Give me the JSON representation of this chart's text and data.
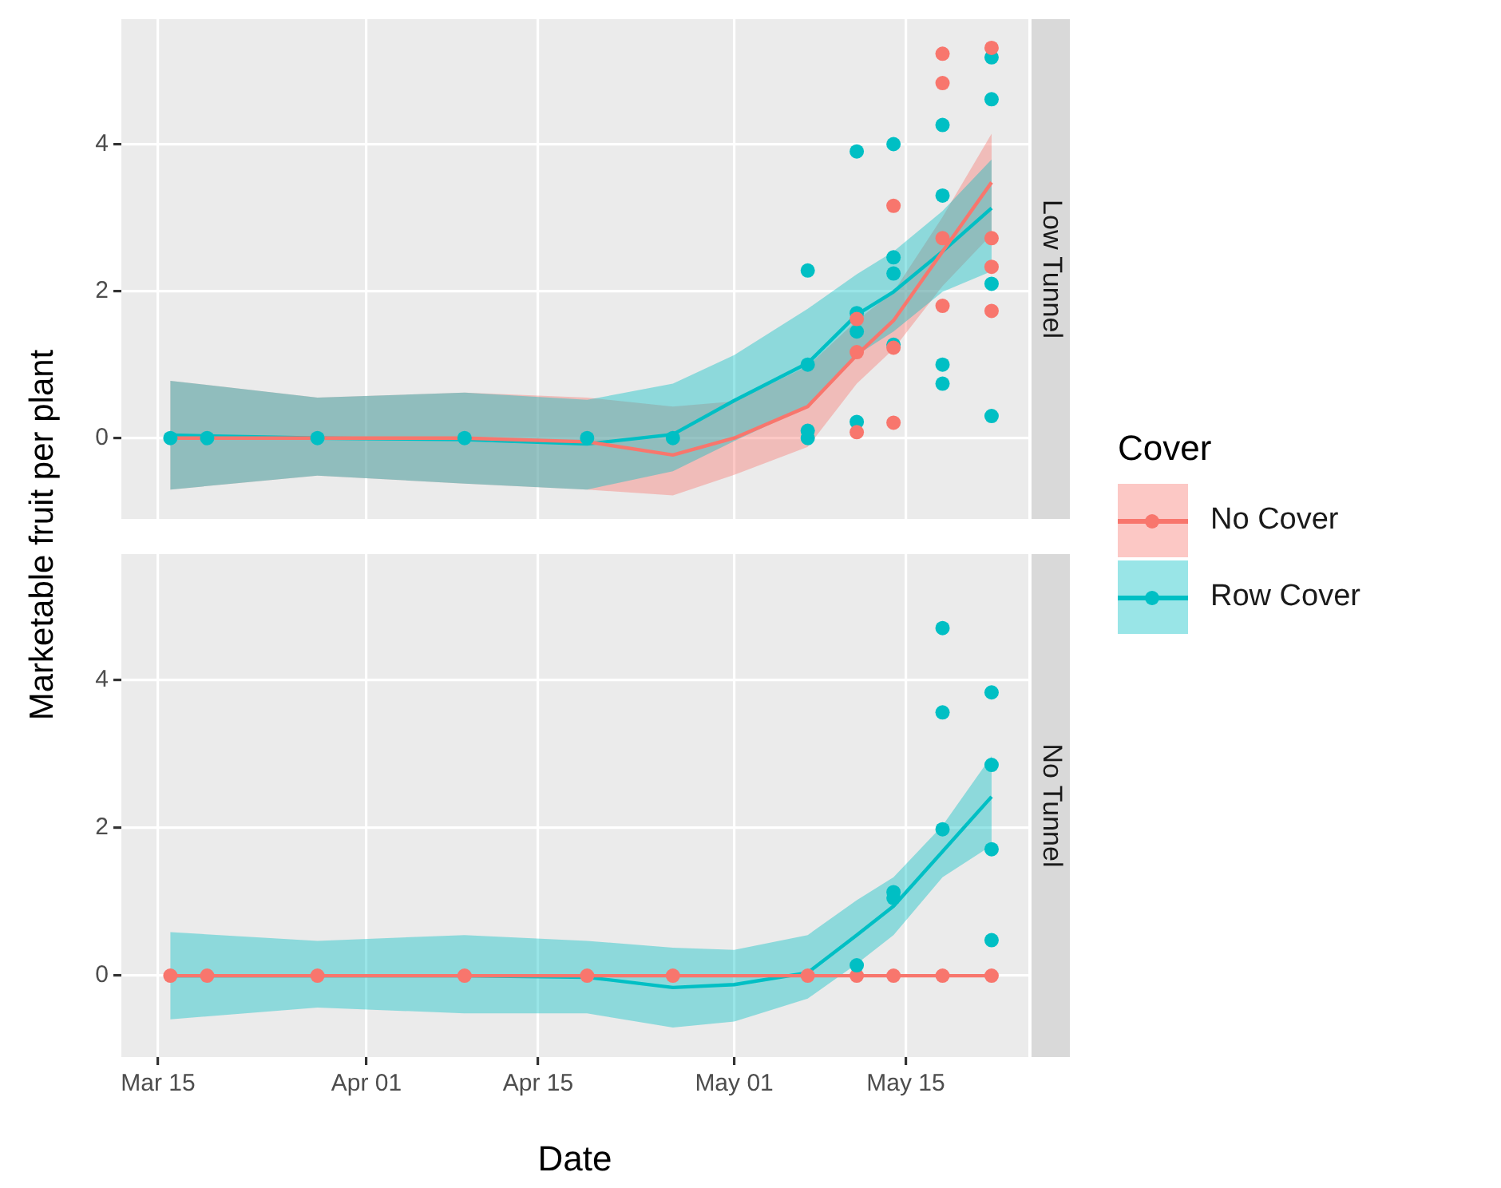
{
  "chart_data": [
    {
      "type": "scatter",
      "title": "Low Tunnel",
      "ylabel": "Marketable fruit per plant",
      "legend_title": "Cover",
      "legend": "right",
      "grid": true,
      "tick_labels": "y",
      "xlim": [
        "--03-12",
        "--05-25"
      ],
      "xticks": [
        "--03-15",
        "--04-01",
        "--04-15",
        "--05-01",
        "--05-15"
      ],
      "ylim": [
        -1.1,
        5.7
      ],
      "yticks": [
        0,
        2,
        4
      ],
      "series": [
        {
          "type": "line",
          "name": "No Cover",
          "color": "#f8766d",
          "marker": "none",
          "x": [
            "--03-16",
            "--03-28",
            "--04-09",
            "--04-19",
            "--04-26",
            "--05-01",
            "--05-07",
            "--05-11",
            "--05-14",
            "--05-18",
            "--05-22"
          ],
          "values": [
            0,
            0,
            0,
            -0.05,
            -0.23,
            0,
            0.43,
            1.13,
            1.6,
            2.54,
            3.48
          ],
          "lower": [
            -0.7,
            -0.51,
            -0.62,
            -0.7,
            -0.78,
            -0.5,
            -0.12,
            0.74,
            1.21,
            2.07,
            2.77
          ],
          "upper": [
            0.78,
            0.55,
            0.62,
            0.55,
            0.43,
            0.5,
            0.98,
            1.6,
            1.99,
            3.01,
            4.14
          ]
        },
        {
          "type": "line",
          "name": "Row Cover",
          "color": "#00bfc4",
          "marker": "none",
          "x": [
            "--03-16",
            "--03-28",
            "--04-09",
            "--04-19",
            "--04-26",
            "--05-01",
            "--05-07",
            "--05-11",
            "--05-14",
            "--05-18",
            "--05-22"
          ],
          "values": [
            0.04,
            0,
            -0.02,
            -0.08,
            0.05,
            0.51,
            1.02,
            1.68,
            1.99,
            2.54,
            3.13
          ],
          "lower": [
            -0.7,
            -0.51,
            -0.62,
            -0.7,
            -0.45,
            -0.04,
            0.43,
            1.13,
            1.45,
            1.99,
            2.27
          ],
          "upper": [
            0.78,
            0.55,
            0.62,
            0.52,
            0.74,
            1.13,
            1.76,
            2.23,
            2.54,
            3.09,
            3.79
          ]
        },
        {
          "color": "#f8766d",
          "marker": "circle",
          "x": [
            "--05-11",
            "--05-11",
            "--05-11",
            "--05-14",
            "--05-14",
            "--05-14",
            "--05-18",
            "--05-18",
            "--05-18",
            "--05-18",
            "--05-22",
            "--05-22",
            "--05-22",
            "--05-22"
          ],
          "values": [
            1.62,
            1.17,
            0.08,
            3.16,
            1.23,
            0.21,
            5.23,
            4.83,
            2.72,
            1.8,
            5.31,
            2.72,
            2.33,
            1.73
          ]
        },
        {
          "color": "#00bfc4",
          "marker": "circle",
          "x": [
            "--03-16",
            "--03-19",
            "--03-28",
            "--04-09",
            "--04-19",
            "--04-26",
            "--05-07",
            "--05-07",
            "--05-07",
            "--05-07",
            "--05-11",
            "--05-11",
            "--05-11",
            "--05-11",
            "--05-14",
            "--05-14",
            "--05-14",
            "--05-14",
            "--05-18",
            "--05-18",
            "--05-18",
            "--05-18",
            "--05-22",
            "--05-22",
            "--05-22",
            "--05-22"
          ],
          "values": [
            0,
            0,
            0,
            0,
            0,
            0,
            2.28,
            1.0,
            0.1,
            0,
            3.9,
            1.7,
            1.45,
            0.22,
            4.0,
            2.46,
            2.24,
            1.27,
            4.26,
            3.3,
            1.0,
            0.74,
            5.18,
            4.61,
            2.1,
            0.3
          ]
        }
      ]
    },
    {
      "type": "scatter",
      "title": "No Tunnel",
      "xlabel": "Date",
      "grid": true,
      "xlim": [
        "--03-12",
        "--05-25"
      ],
      "xticks": [
        {
          "value": "--03-15",
          "label": "Mar 15"
        },
        {
          "value": "--04-01",
          "label": "Apr 01"
        },
        {
          "value": "--04-15",
          "label": "Apr 15"
        },
        {
          "value": "--05-01",
          "label": "May 01"
        },
        {
          "value": "--05-15",
          "label": "May 15"
        }
      ],
      "ylim": [
        -1.1,
        5.7
      ],
      "yticks": [
        0,
        2,
        4
      ],
      "series": [
        {
          "type": "line",
          "color": "#f8766d",
          "marker": "none",
          "x": [
            "--03-16",
            "--05-22"
          ],
          "values": [
            0,
            0
          ]
        },
        {
          "type": "line",
          "color": "#00bfc4",
          "marker": "none",
          "x": [
            "--03-16",
            "--03-28",
            "--04-09",
            "--04-19",
            "--04-26",
            "--05-01",
            "--05-07",
            "--05-11",
            "--05-14",
            "--05-18",
            "--05-22"
          ],
          "values": [
            0,
            0,
            0,
            -0.02,
            -0.16,
            -0.12,
            0.04,
            0.55,
            0.94,
            1.68,
            2.42
          ],
          "lower": [
            -0.59,
            -0.43,
            -0.51,
            -0.51,
            -0.7,
            -0.62,
            -0.31,
            0.16,
            0.55,
            1.33,
            1.76
          ],
          "upper": [
            0.59,
            0.47,
            0.55,
            0.47,
            0.38,
            0.35,
            0.55,
            1.02,
            1.33,
            2.03,
            2.97
          ]
        },
        {
          "color": "#00bfc4",
          "marker": "circle",
          "x": [
            "--05-11",
            "--05-14",
            "--05-14",
            "--05-18",
            "--05-18",
            "--05-18",
            "--05-22",
            "--05-22",
            "--05-22",
            "--05-22"
          ],
          "values": [
            0.14,
            1.13,
            1.05,
            4.7,
            3.56,
            1.98,
            3.83,
            2.85,
            1.71,
            0.48
          ]
        },
        {
          "color": "#f8766d",
          "marker": "circle",
          "x": [
            "--03-16",
            "--03-19",
            "--03-28",
            "--04-09",
            "--04-19",
            "--04-26",
            "--05-07",
            "--05-11",
            "--05-14",
            "--05-18",
            "--05-22"
          ],
          "values": [
            0,
            0,
            0,
            0,
            0,
            0,
            0,
            0,
            0,
            0,
            0
          ]
        }
      ]
    }
  ]
}
